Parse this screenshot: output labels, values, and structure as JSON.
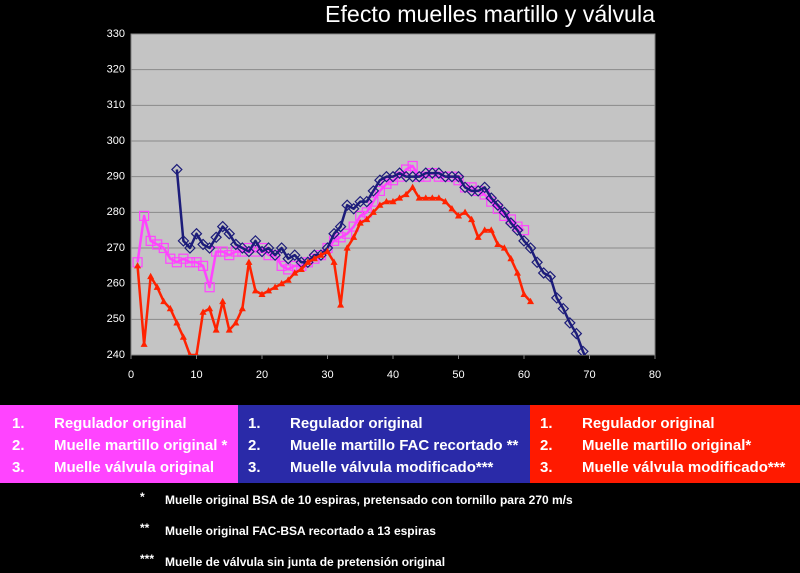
{
  "chart_data": {
    "type": "line",
    "title": "Efecto muelles martillo y válvula",
    "xlim": [
      0,
      80
    ],
    "xticks": [
      0,
      10,
      20,
      30,
      40,
      50,
      60,
      70,
      80
    ],
    "ylim": [
      240,
      330
    ],
    "yticks": [
      240,
      250,
      260,
      270,
      280,
      290,
      300,
      310,
      320,
      330
    ],
    "grid": true,
    "series": [
      {
        "color": "#ff44ff",
        "marker": "square",
        "legend_lines": [
          {
            "num": "1.",
            "text": "Regulador original"
          },
          {
            "num": "2.",
            "text": "Muelle martillo original *"
          },
          {
            "num": "3.",
            "text": "Muelle válvula original"
          }
        ],
        "x": [
          1,
          2,
          3,
          4,
          5,
          6,
          7,
          8,
          9,
          10,
          11,
          12,
          13,
          14,
          15,
          16,
          17,
          18,
          19,
          20,
          21,
          22,
          23,
          24,
          25,
          26,
          27,
          28,
          29,
          30,
          31,
          32,
          33,
          34,
          35,
          36,
          37,
          38,
          39,
          40,
          41,
          42,
          43,
          44,
          45,
          46,
          47,
          48,
          49,
          50,
          51,
          52,
          53,
          54,
          55,
          56,
          57,
          58,
          59,
          60
        ],
        "values": [
          266,
          279,
          272,
          271,
          270,
          267,
          266,
          267,
          266,
          266,
          265,
          259,
          269,
          269,
          268,
          269,
          269,
          270,
          269,
          270,
          268,
          268,
          265,
          264,
          265,
          265,
          266,
          267,
          268,
          270,
          272,
          273,
          274,
          276,
          279,
          280,
          283,
          286,
          288,
          289,
          290,
          292,
          293,
          290,
          290,
          291,
          290,
          290,
          290,
          289,
          287,
          287,
          286,
          285,
          283,
          281,
          279,
          278,
          276,
          275
        ]
      },
      {
        "color": "#1c1c7a",
        "marker": "diamond",
        "legend_lines": [
          {
            "num": "1.",
            "text": "Regulador original"
          },
          {
            "num": "2.",
            "text": "Muelle martillo FAC recortado **"
          },
          {
            "num": "3.",
            "text": "Muelle válvula modificado***"
          }
        ],
        "x": [
          7,
          8,
          9,
          10,
          11,
          12,
          13,
          14,
          15,
          16,
          17,
          18,
          19,
          20,
          21,
          22,
          23,
          24,
          25,
          26,
          27,
          28,
          29,
          30,
          31,
          32,
          33,
          34,
          35,
          36,
          37,
          38,
          39,
          40,
          41,
          42,
          43,
          44,
          45,
          46,
          47,
          48,
          49,
          50,
          51,
          52,
          53,
          54,
          55,
          56,
          57,
          58,
          59,
          60,
          61,
          62,
          63,
          64,
          65,
          66,
          67,
          68,
          69,
          70
        ],
        "values": [
          292,
          272,
          270,
          274,
          271,
          270,
          273,
          276,
          274,
          271,
          270,
          269,
          272,
          269,
          270,
          268,
          270,
          267,
          268,
          266,
          266,
          268,
          268,
          270,
          274,
          276,
          282,
          281,
          283,
          283,
          286,
          289,
          290,
          290,
          291,
          290,
          290,
          290,
          291,
          291,
          291,
          290,
          290,
          290,
          287,
          286,
          286,
          287,
          284,
          282,
          280,
          277,
          275,
          272,
          270,
          266,
          263,
          262,
          256,
          253,
          249,
          246,
          241,
          237
        ]
      },
      {
        "color": "#ff2200",
        "marker": "triangle",
        "legend_lines": [
          {
            "num": "1.",
            "text": "Regulador original"
          },
          {
            "num": "2.",
            "text": "Muelle martillo original*"
          },
          {
            "num": "3.",
            "text": "Muelle válvula modificado***"
          }
        ],
        "x": [
          1,
          2,
          3,
          4,
          5,
          6,
          7,
          8,
          9,
          10,
          11,
          12,
          13,
          14,
          15,
          16,
          17,
          18,
          19,
          20,
          21,
          22,
          23,
          24,
          25,
          26,
          27,
          28,
          29,
          30,
          31,
          32,
          33,
          34,
          35,
          36,
          37,
          38,
          39,
          40,
          41,
          42,
          43,
          44,
          45,
          46,
          47,
          48,
          49,
          50,
          51,
          52,
          53,
          54,
          55,
          56,
          57,
          58,
          59,
          60,
          61
        ],
        "values": [
          265,
          243,
          262,
          259,
          255,
          253,
          249,
          245,
          240,
          240,
          252,
          253,
          247,
          255,
          247,
          249,
          253,
          266,
          258,
          257,
          258,
          259,
          260,
          261,
          263,
          264,
          266,
          267,
          268,
          269,
          266,
          254,
          270,
          273,
          277,
          278,
          280,
          282,
          283,
          283,
          284,
          285,
          287,
          284,
          284,
          284,
          284,
          283,
          281,
          279,
          280,
          278,
          273,
          275,
          275,
          271,
          270,
          267,
          263,
          257,
          255
        ]
      }
    ],
    "footnotes": [
      {
        "mark": "*",
        "text": "Muelle original BSA de 10 espiras, pretensado con tornillo para 270 m/s"
      },
      {
        "mark": "**",
        "text": "Muelle original FAC-BSA recortado a 13 espiras"
      },
      {
        "mark": "***",
        "text": "Muelle de válvula sin junta de pretensión original"
      }
    ]
  }
}
